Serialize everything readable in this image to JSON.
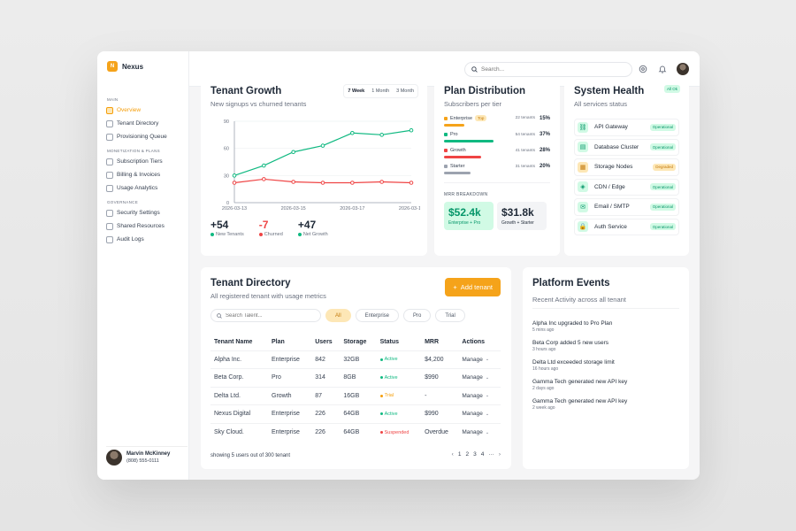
{
  "brand": {
    "logo": "N",
    "name": "Nexus"
  },
  "nav": {
    "sections": [
      {
        "title": "MAIN",
        "items": [
          {
            "label": "Overview",
            "icon": "grid-icon",
            "active": true
          },
          {
            "label": "Tenant Directory",
            "icon": "building-icon"
          },
          {
            "label": "Provisioning Queue",
            "icon": "queue-icon"
          }
        ]
      },
      {
        "title": "MONETIZATION & PLANS",
        "items": [
          {
            "label": "Subscription Tiers",
            "icon": "users-icon"
          },
          {
            "label": "Billing & Invoices",
            "icon": "card-icon"
          },
          {
            "label": "Usage Analytics",
            "icon": "analytics-icon"
          }
        ]
      },
      {
        "title": "GOVERNANCE",
        "items": [
          {
            "label": "Security Settings",
            "icon": "lock-icon"
          },
          {
            "label": "Shared Resources",
            "icon": "share-icon"
          },
          {
            "label": "Audit Logs",
            "icon": "file-icon"
          }
        ]
      }
    ]
  },
  "user": {
    "name": "Marvin McKinney",
    "phone": "(808) 555-0111"
  },
  "topbar": {
    "search_placeholder": "Search..."
  },
  "growth": {
    "title": "Tenant Growth",
    "subtitle": "New signups vs churned tenants",
    "ranges": [
      "7 Week",
      "1 Month",
      "3 Month"
    ],
    "active_range": 0,
    "stats": [
      {
        "value": "+54",
        "label": "New Tenants",
        "color": "#10b981"
      },
      {
        "value": "-7",
        "label": "Churned",
        "color": "#ef4444"
      },
      {
        "value": "+47",
        "label": "Net Growth",
        "color": "#10b981"
      }
    ]
  },
  "chart_data": {
    "type": "line",
    "x": [
      "2026-03-13",
      "2026-03-14",
      "2026-03-15",
      "2026-03-16",
      "2026-03-17",
      "2026-03-18",
      "2026-03-19"
    ],
    "x_tick_labels": [
      "2026-03-13",
      "2026-03-15",
      "2026-03-17",
      "2026-03-19"
    ],
    "y_ticks": [
      0,
      30,
      60,
      90
    ],
    "ylim": [
      0,
      90
    ],
    "series": [
      {
        "color": "#10b981",
        "values": [
          30,
          41,
          56,
          63,
          77,
          75,
          80
        ]
      },
      {
        "color": "#ef4444",
        "values": [
          22,
          26,
          23,
          22,
          22,
          23,
          22
        ]
      }
    ],
    "grid": true
  },
  "plans": {
    "title": "Plan Distribution",
    "subtitle": "Subscribers per tier",
    "tiers": [
      {
        "name": "Enterprise",
        "badge": "Top",
        "count": "22 tenants",
        "pct": "15%",
        "value": 15,
        "color": "#f5a31a"
      },
      {
        "name": "Pro",
        "badge": "",
        "count": "54 tenants",
        "pct": "37%",
        "value": 37,
        "color": "#10b981"
      },
      {
        "name": "Growth",
        "badge": "",
        "count": "41 tenants",
        "pct": "28%",
        "value": 28,
        "color": "#ef4444"
      },
      {
        "name": "Starter",
        "badge": "",
        "count": "31 tenants",
        "pct": "20%",
        "value": 20,
        "color": "#9ca3af"
      }
    ],
    "mrr_label": "MRR BREAKDOWN",
    "mrr": [
      {
        "value": "$52.4k",
        "note": "Enterprise + Pro",
        "bg": "#d1fae5",
        "color": "#059669"
      },
      {
        "value": "$31.8k",
        "note": "Growth + Starter",
        "bg": "#f3f4f6",
        "color": "#1f2937"
      }
    ]
  },
  "health": {
    "title": "System Health",
    "subtitle": "All services status",
    "badge": "All Ok",
    "services": [
      {
        "name": "API Gateway",
        "status": "Operational",
        "icon": "link-icon",
        "glyph": "⛓",
        "warn": false
      },
      {
        "name": "Database Cluster",
        "status": "Operational",
        "icon": "database-icon",
        "glyph": "▤",
        "warn": false
      },
      {
        "name": "Storage Nodes",
        "status": "Degraded",
        "icon": "storage-icon",
        "glyph": "▦",
        "warn": true
      },
      {
        "name": "CDN / Edge",
        "status": "Operational",
        "icon": "cdn-icon",
        "glyph": "◈",
        "warn": false
      },
      {
        "name": "Email / SMTP",
        "status": "Operational",
        "icon": "mail-icon",
        "glyph": "✉",
        "warn": false
      },
      {
        "name": "Auth Service",
        "status": "Operational",
        "icon": "lock-icon",
        "glyph": "🔒",
        "warn": false
      }
    ]
  },
  "directory": {
    "title": "Tenant Directory",
    "subtitle": "All registered tenant with usage metrics",
    "add_label": "Add tenant",
    "search_placeholder": "Search Talent...",
    "filters": [
      "All",
      "Enterprise",
      "Pro",
      "Trial"
    ],
    "active_filter": 0,
    "columns": [
      "Tenant Name",
      "Plan",
      "Users",
      "Storage",
      "Status",
      "MRR",
      "Actions"
    ],
    "rows": [
      {
        "name": "Alpha Inc.",
        "plan": "Enterprise",
        "users": "842",
        "storage": "32GB",
        "status": "Active",
        "status_color": "#10b981",
        "mrr": "$4,200",
        "action": "Manage"
      },
      {
        "name": "Beta Corp.",
        "plan": "Pro",
        "users": "314",
        "storage": "8GB",
        "status": "Active",
        "status_color": "#10b981",
        "mrr": "$990",
        "action": "Manage"
      },
      {
        "name": "Delta Ltd.",
        "plan": "Growth",
        "users": "87",
        "storage": "16GB",
        "status": "Trial",
        "status_color": "#f59e0b",
        "mrr": "-",
        "action": "Manage"
      },
      {
        "name": "Nexus Digital",
        "plan": "Enterprise",
        "users": "226",
        "storage": "64GB",
        "status": "Active",
        "status_color": "#10b981",
        "mrr": "$990",
        "action": "Manage"
      },
      {
        "name": "Sky Cloud.",
        "plan": "Enterprise",
        "users": "226",
        "storage": "64GB",
        "status": "Suspended",
        "status_color": "#ef4444",
        "mrr": "Overdue",
        "action": "Manage"
      }
    ],
    "footer": "showing 5 users out of 300 tenant",
    "pages": [
      "1",
      "2",
      "3",
      "4",
      "···"
    ]
  },
  "events": {
    "title": "Platform Events",
    "subtitle": "Recent Activity across all tenant",
    "items": [
      {
        "title": "Alpha Inc upgraded to Pro Plan",
        "time": "5 mins ago"
      },
      {
        "title": "Beta Corp added 5 new users",
        "time": "3 hours ago"
      },
      {
        "title": "Delta Ltd exceeded storage limit",
        "time": "16 hours ago"
      },
      {
        "title": "Gamma Tech generated new API key",
        "time": "2 days ago"
      },
      {
        "title": "Gamma Tech generated new API key",
        "time": "2 week ago"
      }
    ]
  }
}
